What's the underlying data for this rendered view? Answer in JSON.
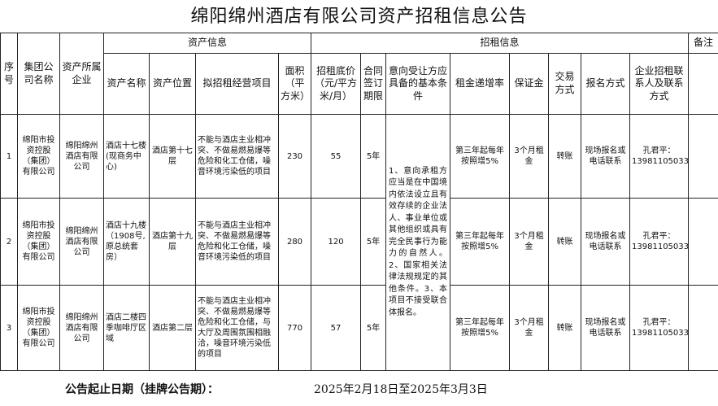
{
  "title": "绵阳绵州酒店有限公司资产招租信息公告",
  "group_headers": {
    "asset_info": "资产信息",
    "lease_info": "招租信息",
    "remarks": "备注"
  },
  "columns": {
    "no": "序号",
    "group": "集团公司名称",
    "owner": "资产所属企业",
    "name": "资产名称",
    "location": "资产位置",
    "project": "拟招租经营项目",
    "area": "面积（平方米）",
    "price": "招租底价（元/平方米/月）",
    "term": "合同签订期限",
    "conditions": "意向受让方应具备的基本条件",
    "rate": "租金递增率",
    "deposit": "保证金",
    "trade": "交易方式",
    "signup": "报名方式",
    "contact": "企业招租联系人及联系方式"
  },
  "rows": [
    {
      "no": "1",
      "group": "绵阳市投资控股（集团）有限公司",
      "owner": "绵阳绵州酒店有限公司",
      "name": "酒店十七楼(现商务中心)",
      "location": "酒店第十七层",
      "project": "不能与酒店主业相冲突、不做易燃易爆等危险和化工仓储，噪音环境污染低的项目",
      "area": "230",
      "price": "55",
      "term": "5年",
      "rate": "第三年起每年按照增5%",
      "deposit": "3个月租金",
      "trade": "转账",
      "signup": "现场报名或电话联系",
      "contact": "孔君平：13981105033",
      "remarks": ""
    },
    {
      "no": "2",
      "group": "绵阳市投资控股（集团）有限公司",
      "owner": "绵阳绵州酒店有限公司",
      "name": "酒店十九楼（1908号,原总统套房）",
      "location": "酒店第十九层",
      "project": "不能与酒店主业相冲突、不做易燃易爆等危险和化工仓储，噪音环境污染低的项目",
      "area": "280",
      "price": "120",
      "term": "5年",
      "rate": "第三年起每年按照增5%",
      "deposit": "3个月租金",
      "trade": "转账",
      "signup": "现场报名或电话联系",
      "contact": "孔君平：13981105033",
      "remarks": ""
    },
    {
      "no": "3",
      "group": "绵阳市投资控股（集团）有限公司",
      "owner": "绵阳绵州酒店有限公司",
      "name": "酒店二楼四季咖啡厅区域",
      "location": "酒店第二层",
      "project": "不能与酒店主业相冲突、不做易燃易爆等危险和化工仓储，与大厅及周围氛围相融洽，噪音环境污染低的项目",
      "area": "770",
      "price": "57",
      "term": "5年",
      "rate": "第三年起每年按照增5%",
      "deposit": "3个月租金",
      "trade": "转账",
      "signup": "现场报名或电话联系",
      "contact": "孔君平：13981105033",
      "remarks": ""
    }
  ],
  "conditions": "1、意向承租方应当是在中国境内依法设立且有效存续的企业法人、事业单位或其他组织或具有完全民事行为能力的自然人。2、国家相关法律法规规定的其他条件。3、本项目不接受联合体报名。",
  "footer": {
    "label": "公告起止日期（挂牌公告期）：",
    "value": "2025年2月18日至2025年3月3日"
  }
}
